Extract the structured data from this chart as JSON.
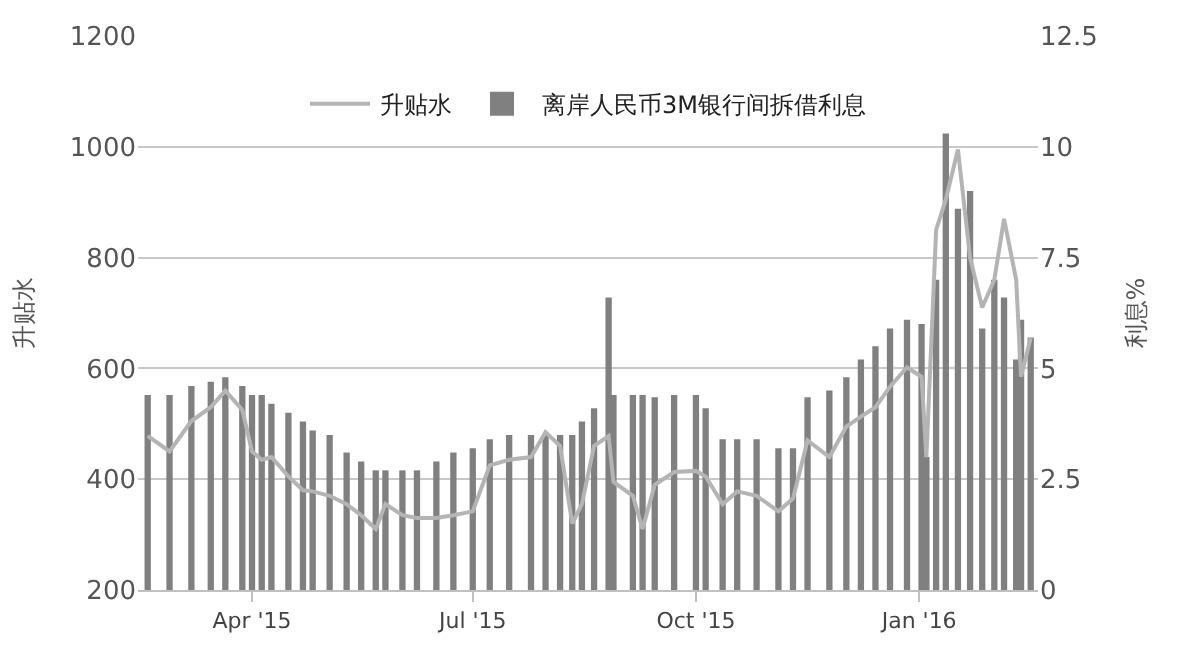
{
  "chart_data": {
    "type": "bar",
    "ylabel": "升贴水",
    "y2label": "利息%",
    "x": [
      "2015-02-17",
      "2015-02-26",
      "2015-03-07",
      "2015-03-15",
      "2015-03-21",
      "2015-03-28",
      "2015-04-01",
      "2015-04-05",
      "2015-04-09",
      "2015-04-16",
      "2015-04-22",
      "2015-04-26",
      "2015-05-03",
      "2015-05-10",
      "2015-05-16",
      "2015-05-22",
      "2015-05-26",
      "2015-06-02",
      "2015-06-08",
      "2015-06-16",
      "2015-06-23",
      "2015-07-01",
      "2015-07-08",
      "2015-07-16",
      "2015-07-25",
      "2015-07-31",
      "2015-08-06",
      "2015-08-11",
      "2015-08-15",
      "2015-08-20",
      "2015-08-26",
      "2015-08-28",
      "2015-09-05",
      "2015-09-09",
      "2015-09-14",
      "2015-09-22",
      "2015-10-01",
      "2015-10-05",
      "2015-10-12",
      "2015-10-18",
      "2015-10-26",
      "2015-11-04",
      "2015-11-10",
      "2015-11-16",
      "2015-11-25",
      "2015-12-02",
      "2015-12-08",
      "2015-12-14",
      "2015-12-20",
      "2015-12-27",
      "2016-01-02",
      "2016-01-04",
      "2016-01-08",
      "2016-01-12",
      "2016-01-17",
      "2016-01-22",
      "2016-01-27",
      "2016-02-01",
      "2016-02-05",
      "2016-02-10",
      "2016-02-12",
      "2016-02-16"
    ],
    "series": [
      {
        "name": "升贴水",
        "type": "line",
        "color": "#b4b4b4",
        "values": [
          478,
          450,
          505,
          530,
          560,
          525,
          450,
          435,
          440,
          405,
          380,
          378,
          370,
          355,
          335,
          310,
          355,
          335,
          330,
          330,
          335,
          342,
          425,
          435,
          440,
          485,
          460,
          320,
          355,
          460,
          478,
          395,
          370,
          310,
          390,
          413,
          415,
          405,
          355,
          378,
          370,
          342,
          365,
          470,
          440,
          495,
          513,
          530,
          567,
          602,
          585,
          440,
          850,
          905,
          995,
          800,
          710,
          760,
          870,
          760,
          585,
          655
        ]
      },
      {
        "name": "离岸人民币3M银行间拆借利息",
        "axis": "y2",
        "color": "#808080",
        "values": [
          4.4,
          4.4,
          4.6,
          4.7,
          4.8,
          4.6,
          4.4,
          4.4,
          4.2,
          4.0,
          3.8,
          3.6,
          3.5,
          3.1,
          2.9,
          2.7,
          2.7,
          2.7,
          2.7,
          2.9,
          3.1,
          3.2,
          3.4,
          3.5,
          3.5,
          3.5,
          3.5,
          3.5,
          3.8,
          4.1,
          6.6,
          4.4,
          4.4,
          4.4,
          4.35,
          4.4,
          4.4,
          4.1,
          3.4,
          3.4,
          3.4,
          3.2,
          3.2,
          4.35,
          4.5,
          4.8,
          5.2,
          5.5,
          5.9,
          6.1,
          6.0,
          3.0,
          7.0,
          10.3,
          8.6,
          9.0,
          5.9,
          7.0,
          6.6,
          5.2,
          6.1,
          5.7
        ]
      }
    ],
    "xlim": [
      "2015-02-13",
      "2016-02-19"
    ],
    "xticks": [
      {
        "value": "2015-04-01",
        "label": "Apr '15"
      },
      {
        "value": "2015-07-01",
        "label": "Jul '15"
      },
      {
        "value": "2015-10-01",
        "label": "Oct '15"
      },
      {
        "value": "2016-01-01",
        "label": "Jan '16"
      }
    ],
    "ylim": [
      200,
      1200
    ],
    "yticks": [
      200,
      400,
      600,
      800,
      1000,
      1200
    ],
    "y2lim": [
      0,
      12.5
    ],
    "y2ticks": [
      0,
      2.5,
      5,
      7.5,
      10,
      12.5
    ],
    "grid": "y",
    "legend": "top"
  }
}
